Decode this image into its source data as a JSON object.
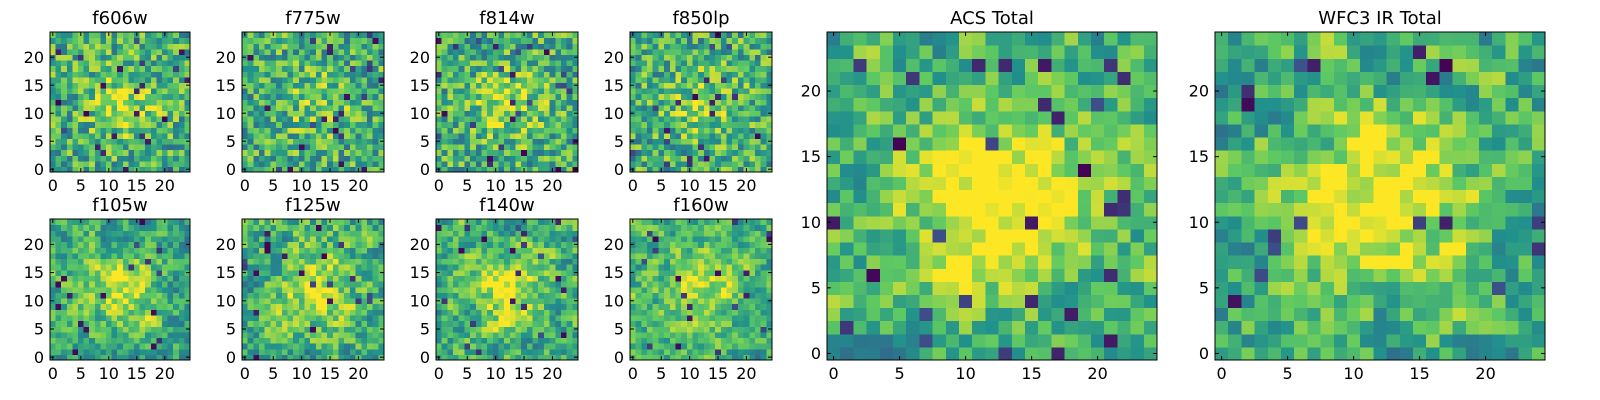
{
  "chart_data": [
    {
      "type": "heatmap",
      "title": "f606w",
      "xlim": [
        0,
        24
      ],
      "ylim": [
        0,
        24
      ],
      "xticks": [
        "0",
        "5",
        "10",
        "15",
        "20"
      ],
      "yticks": [
        "0",
        "5",
        "10",
        "15",
        "20"
      ],
      "colormap": "viridis",
      "grid": false
    },
    {
      "type": "heatmap",
      "title": "f775w",
      "xlim": [
        0,
        24
      ],
      "ylim": [
        0,
        24
      ],
      "xticks": [
        "0",
        "5",
        "10",
        "15",
        "20"
      ],
      "yticks": [
        "0",
        "5",
        "10",
        "15",
        "20"
      ],
      "colormap": "viridis",
      "grid": false
    },
    {
      "type": "heatmap",
      "title": "f814w",
      "xlim": [
        0,
        24
      ],
      "ylim": [
        0,
        24
      ],
      "xticks": [
        "0",
        "5",
        "10",
        "15",
        "20"
      ],
      "yticks": [
        "0",
        "5",
        "10",
        "15",
        "20"
      ],
      "colormap": "viridis",
      "grid": false
    },
    {
      "type": "heatmap",
      "title": "f850lp",
      "xlim": [
        0,
        24
      ],
      "ylim": [
        0,
        24
      ],
      "xticks": [
        "0",
        "5",
        "10",
        "15",
        "20"
      ],
      "yticks": [
        "0",
        "5",
        "10",
        "15",
        "20"
      ],
      "colormap": "viridis",
      "grid": false
    },
    {
      "type": "heatmap",
      "title": "f105w",
      "xlim": [
        0,
        24
      ],
      "ylim": [
        0,
        24
      ],
      "xticks": [
        "0",
        "5",
        "10",
        "15",
        "20"
      ],
      "yticks": [
        "0",
        "5",
        "10",
        "15",
        "20"
      ],
      "colormap": "viridis",
      "grid": false
    },
    {
      "type": "heatmap",
      "title": "f125w",
      "xlim": [
        0,
        24
      ],
      "ylim": [
        0,
        24
      ],
      "xticks": [
        "0",
        "5",
        "10",
        "15",
        "20"
      ],
      "yticks": [
        "0",
        "5",
        "10",
        "15",
        "20"
      ],
      "colormap": "viridis",
      "grid": false
    },
    {
      "type": "heatmap",
      "title": "f140w",
      "xlim": [
        0,
        24
      ],
      "ylim": [
        0,
        24
      ],
      "xticks": [
        "0",
        "5",
        "10",
        "15",
        "20"
      ],
      "yticks": [
        "0",
        "5",
        "10",
        "15",
        "20"
      ],
      "colormap": "viridis",
      "grid": false
    },
    {
      "type": "heatmap",
      "title": "f160w",
      "xlim": [
        0,
        24
      ],
      "ylim": [
        0,
        24
      ],
      "xticks": [
        "0",
        "5",
        "10",
        "15",
        "20"
      ],
      "yticks": [
        "0",
        "5",
        "10",
        "15",
        "20"
      ],
      "colormap": "viridis",
      "grid": false
    },
    {
      "type": "heatmap",
      "title": "ACS Total",
      "xlim": [
        0,
        24
      ],
      "ylim": [
        0,
        24
      ],
      "xticks": [
        "0",
        "5",
        "10",
        "15",
        "20"
      ],
      "yticks": [
        "0",
        "5",
        "10",
        "15",
        "20"
      ],
      "colormap": "viridis",
      "grid": false
    },
    {
      "type": "heatmap",
      "title": "WFC3 IR Total",
      "xlim": [
        0,
        24
      ],
      "ylim": [
        0,
        24
      ],
      "xticks": [
        "0",
        "5",
        "10",
        "15",
        "20"
      ],
      "yticks": [
        "0",
        "5",
        "10",
        "15",
        "20"
      ],
      "colormap": "viridis",
      "grid": false
    }
  ],
  "colormap_stops": [
    "#440154",
    "#3b528b",
    "#21918c",
    "#5ec962",
    "#fde725"
  ]
}
